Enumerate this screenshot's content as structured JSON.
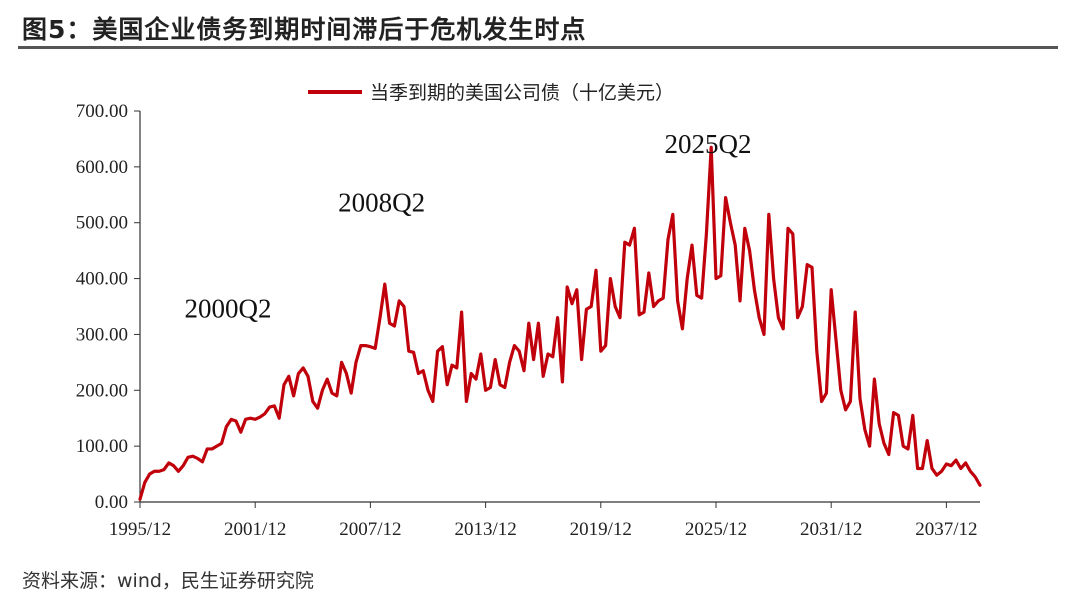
{
  "figure": {
    "title": "图5：美国企业债务到期时间滞后于危机发生时点",
    "source": "资料来源：wind，民生证券研究院"
  },
  "chart_data": {
    "type": "line",
    "legend_position": "top-center",
    "grid": false,
    "ylim": [
      0,
      700
    ],
    "yticks": [
      "0.00",
      "100.00",
      "200.00",
      "300.00",
      "400.00",
      "500.00",
      "600.00",
      "700.00"
    ],
    "xticks": [
      "1995/12",
      "2001/12",
      "2007/12",
      "2013/12",
      "2019/12",
      "2025/12",
      "2031/12",
      "2037/12"
    ],
    "annotations": [
      {
        "text": "2000Q2",
        "x": 2000.5,
        "y": 330
      },
      {
        "text": "2008Q2",
        "x": 2008.5,
        "y": 520
      },
      {
        "text": "2025Q2",
        "x": 2025.5,
        "y": 625
      }
    ],
    "series": [
      {
        "name": "当季到期的美国公司债（十亿美元）",
        "color": "#c0000a",
        "x_start": 1995.917,
        "x_step": 0.25,
        "values": [
          5,
          35,
          50,
          55,
          55,
          58,
          70,
          65,
          55,
          65,
          80,
          82,
          78,
          72,
          95,
          95,
          100,
          105,
          135,
          148,
          145,
          125,
          148,
          150,
          148,
          152,
          158,
          170,
          172,
          150,
          210,
          225,
          190,
          230,
          240,
          225,
          180,
          168,
          200,
          220,
          195,
          190,
          250,
          230,
          195,
          250,
          280,
          280,
          278,
          275,
          330,
          390,
          320,
          315,
          360,
          350,
          270,
          268,
          230,
          235,
          200,
          180,
          270,
          278,
          210,
          245,
          240,
          340,
          180,
          230,
          220,
          265,
          200,
          205,
          255,
          210,
          205,
          250,
          280,
          270,
          235,
          320,
          255,
          320,
          225,
          265,
          260,
          330,
          215,
          385,
          355,
          380,
          255,
          345,
          350,
          415,
          270,
          280,
          400,
          350,
          330,
          465,
          460,
          490,
          335,
          340,
          410,
          350,
          360,
          365,
          470,
          515,
          360,
          310,
          400,
          460,
          370,
          365,
          480,
          635,
          400,
          405,
          545,
          500,
          460,
          360,
          490,
          450,
          380,
          330,
          300,
          515,
          400,
          330,
          310,
          490,
          480,
          330,
          350,
          425,
          420,
          270,
          180,
          195,
          380,
          290,
          200,
          165,
          180,
          340,
          185,
          130,
          100,
          220,
          140,
          105,
          85,
          160,
          155,
          100,
          95,
          155,
          60,
          60,
          110,
          60,
          48,
          55,
          68,
          65,
          75,
          60,
          70,
          55,
          45,
          30
        ]
      }
    ]
  }
}
